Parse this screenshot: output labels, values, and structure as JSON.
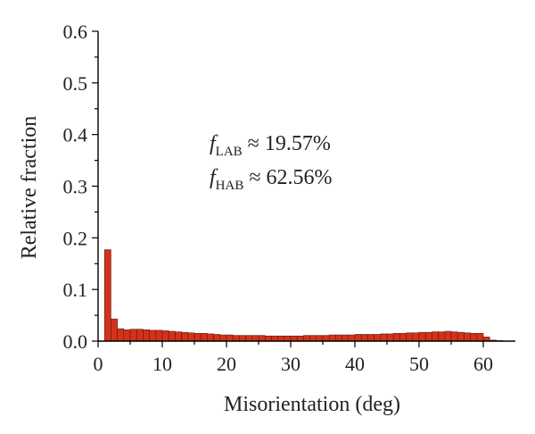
{
  "chart_data": {
    "type": "bar",
    "title": "",
    "xlabel": "Misorientation (deg)",
    "ylabel": "Relative fraction",
    "xlim": [
      0,
      65
    ],
    "ylim": [
      0,
      0.6
    ],
    "x_ticks": [
      0,
      10,
      20,
      30,
      40,
      50,
      60
    ],
    "y_ticks": [
      0.0,
      0.1,
      0.2,
      0.3,
      0.4,
      0.5,
      0.6
    ],
    "x_tick_labels": [
      "0",
      "10",
      "20",
      "30",
      "40",
      "50",
      "60"
    ],
    "y_tick_labels": [
      "0.0",
      "0.1",
      "0.2",
      "0.3",
      "0.4",
      "0.5",
      "0.6"
    ],
    "bin_width": 1,
    "bin_starts": [
      1,
      2,
      3,
      4,
      5,
      6,
      7,
      8,
      9,
      10,
      11,
      12,
      13,
      14,
      15,
      16,
      17,
      18,
      19,
      20,
      21,
      22,
      23,
      24,
      25,
      26,
      27,
      28,
      29,
      30,
      31,
      32,
      33,
      34,
      35,
      36,
      37,
      38,
      39,
      40,
      41,
      42,
      43,
      44,
      45,
      46,
      47,
      48,
      49,
      50,
      51,
      52,
      53,
      54,
      55,
      56,
      57,
      58,
      59,
      60,
      61,
      62
    ],
    "values": [
      0.177,
      0.043,
      0.024,
      0.022,
      0.023,
      0.023,
      0.022,
      0.021,
      0.021,
      0.02,
      0.019,
      0.018,
      0.017,
      0.016,
      0.015,
      0.015,
      0.014,
      0.013,
      0.012,
      0.012,
      0.011,
      0.011,
      0.011,
      0.011,
      0.011,
      0.01,
      0.01,
      0.01,
      0.01,
      0.01,
      0.01,
      0.011,
      0.011,
      0.011,
      0.011,
      0.012,
      0.012,
      0.012,
      0.012,
      0.013,
      0.013,
      0.013,
      0.013,
      0.014,
      0.014,
      0.015,
      0.015,
      0.016,
      0.016,
      0.017,
      0.017,
      0.018,
      0.018,
      0.019,
      0.018,
      0.017,
      0.016,
      0.015,
      0.015,
      0.008,
      0.002,
      0.001
    ],
    "bar_color": "#d2321c",
    "grid": false,
    "annotations": [
      {
        "symbol": "f",
        "subscript": "LAB",
        "text": " ≈ 19.57%"
      },
      {
        "symbol": "f",
        "subscript": "HAB",
        "text": " ≈ 62.56%"
      }
    ]
  }
}
